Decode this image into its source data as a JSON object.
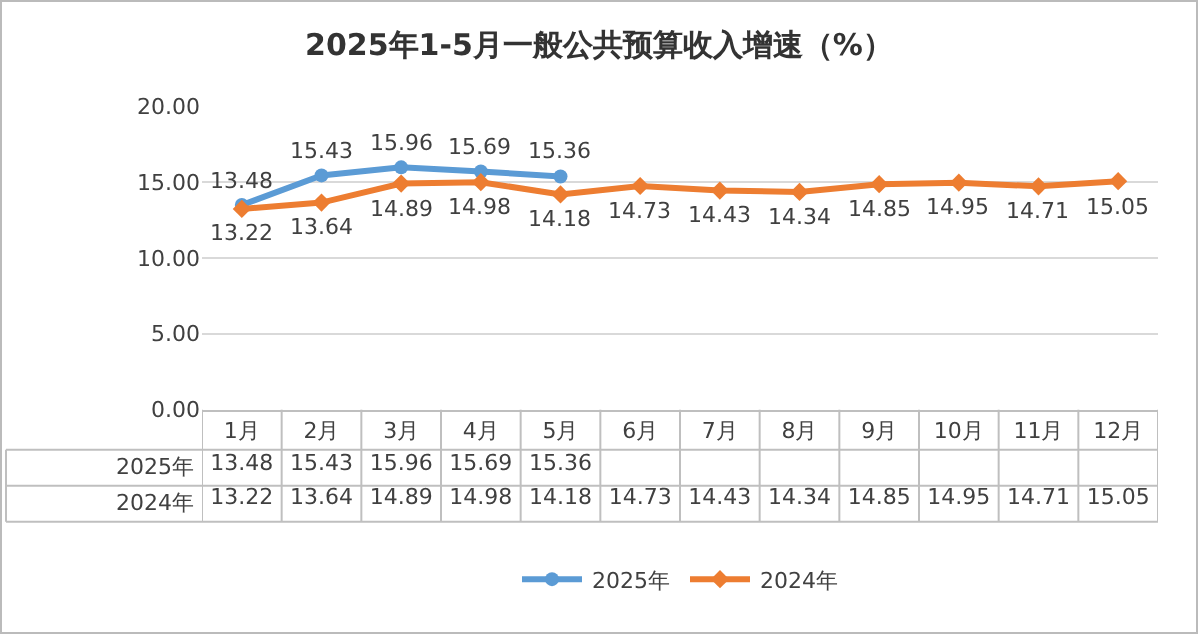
{
  "chart_data": {
    "type": "line",
    "title": "2025年1-5月一般公共预算收入增速（%）",
    "categories": [
      "1月",
      "2月",
      "3月",
      "4月",
      "5月",
      "6月",
      "7月",
      "8月",
      "9月",
      "10月",
      "11月",
      "12月"
    ],
    "series": [
      {
        "name": "2025年",
        "color": "#5b9bd5",
        "marker": "circle",
        "values": [
          13.48,
          15.43,
          15.96,
          15.69,
          15.36,
          null,
          null,
          null,
          null,
          null,
          null,
          null
        ]
      },
      {
        "name": "2024年",
        "color": "#ed7d31",
        "marker": "diamond",
        "values": [
          13.22,
          13.64,
          14.89,
          14.98,
          14.18,
          14.73,
          14.43,
          14.34,
          14.85,
          14.95,
          14.71,
          15.05
        ]
      }
    ],
    "annotations": [
      {
        "text": "13.48",
        "x": "1月",
        "y": 13.48
      },
      {
        "text": "15.43",
        "x": "2月",
        "y": 15.43
      },
      {
        "text": "15.96",
        "x": "3月",
        "y": 15.96
      },
      {
        "text": "15.69",
        "x": "4月",
        "y": 15.69
      },
      {
        "text": "15.36",
        "x": "5月",
        "y": 15.36
      },
      {
        "text": "13.22",
        "x": "1月",
        "y": 13.22
      },
      {
        "text": "13.64",
        "x": "2月",
        "y": 13.64
      },
      {
        "text": "14.89",
        "x": "3月",
        "y": 14.89
      },
      {
        "text": "14.98",
        "x": "4月",
        "y": 14.98
      },
      {
        "text": "14.18",
        "x": "5月",
        "y": 14.18
      },
      {
        "text": "14.73",
        "x": "6月",
        "y": 14.73
      },
      {
        "text": "14.43",
        "x": "7月",
        "y": 14.43
      },
      {
        "text": "14.34",
        "x": "8月",
        "y": 14.34
      },
      {
        "text": "14.85",
        "x": "9月",
        "y": 14.85
      },
      {
        "text": "14.95",
        "x": "10月",
        "y": 14.95
      },
      {
        "text": "14.71",
        "x": "11月",
        "y": 14.71
      },
      {
        "text": "15.05",
        "x": "12月",
        "y": 15.05
      }
    ],
    "ylim": [
      0,
      20
    ],
    "yticks": [
      {
        "value": 0,
        "label": "0.00"
      },
      {
        "value": 5,
        "label": "5.00"
      },
      {
        "value": 10,
        "label": "10.00"
      },
      {
        "value": 15,
        "label": "15.00"
      },
      {
        "value": 20,
        "label": "20.00"
      }
    ],
    "grid": "y",
    "legend": "bottom",
    "data_labels": true
  }
}
